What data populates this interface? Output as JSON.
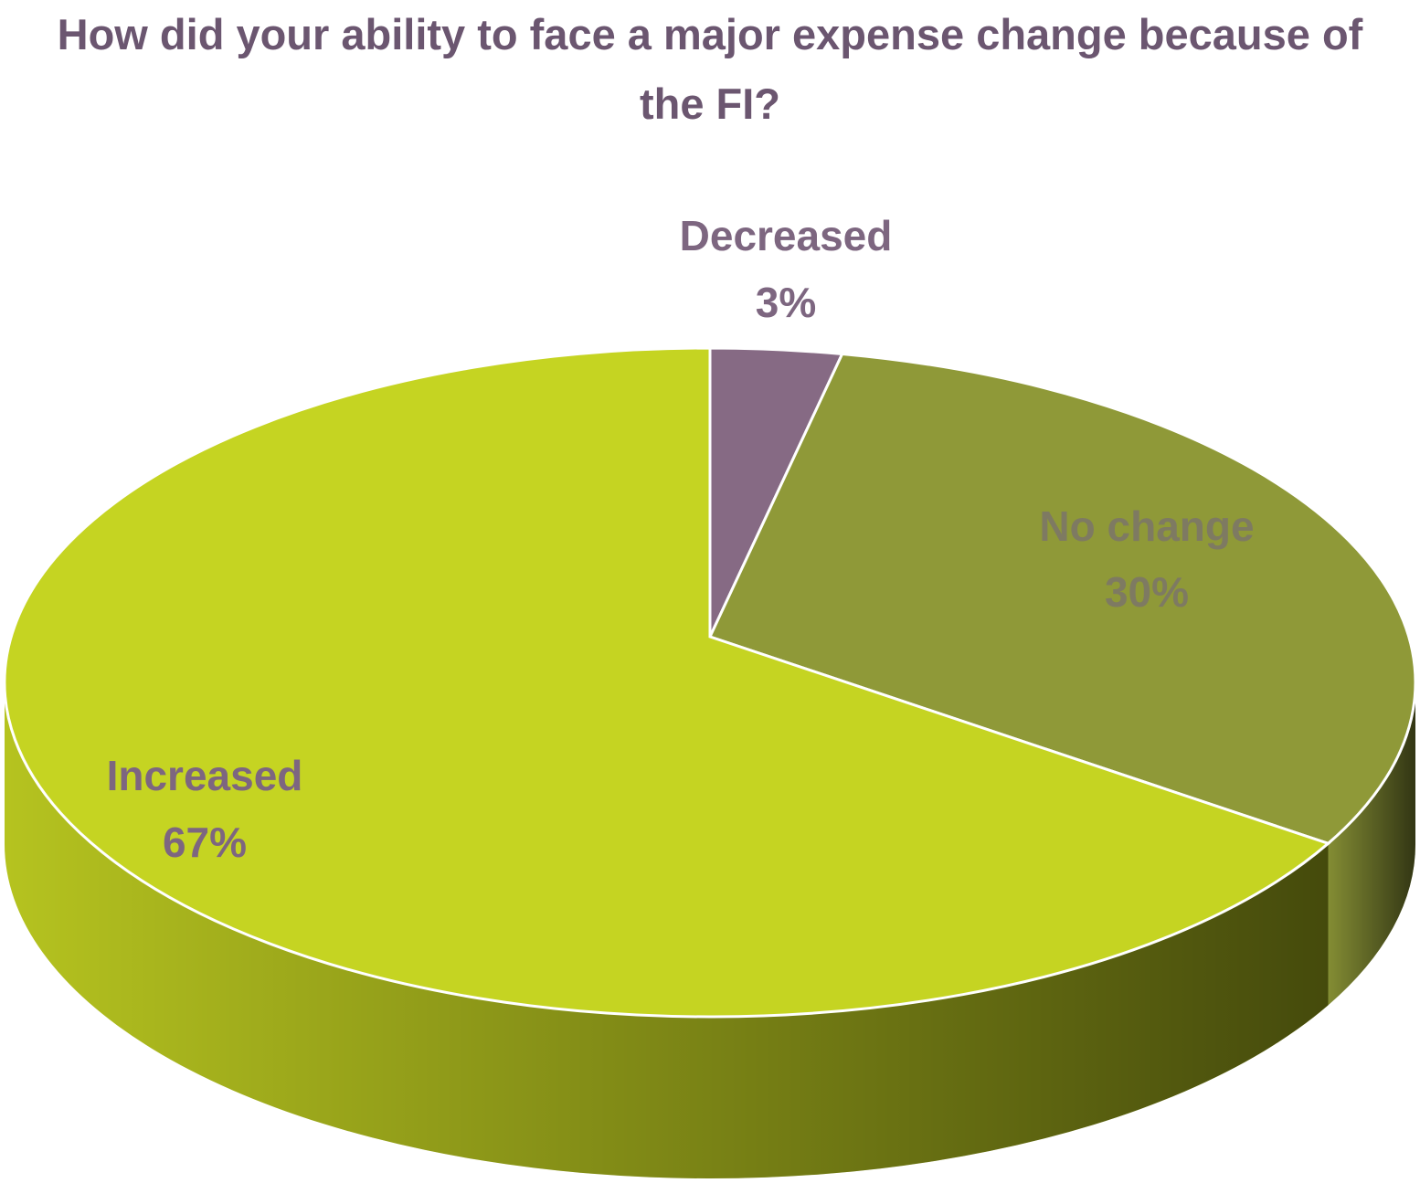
{
  "chart_data": {
    "type": "pie",
    "title": "How did your ability to face a major expense change because of the FI?",
    "categories": [
      "Decreased",
      "No change",
      "Increased"
    ],
    "values": [
      3,
      30,
      67
    ],
    "value_labels": [
      "3%",
      "30%",
      "67%"
    ],
    "colors": [
      "#866a84",
      "#8f9938",
      "#c5d422"
    ],
    "start": "top",
    "direction": "clockwise",
    "three_d": true
  }
}
